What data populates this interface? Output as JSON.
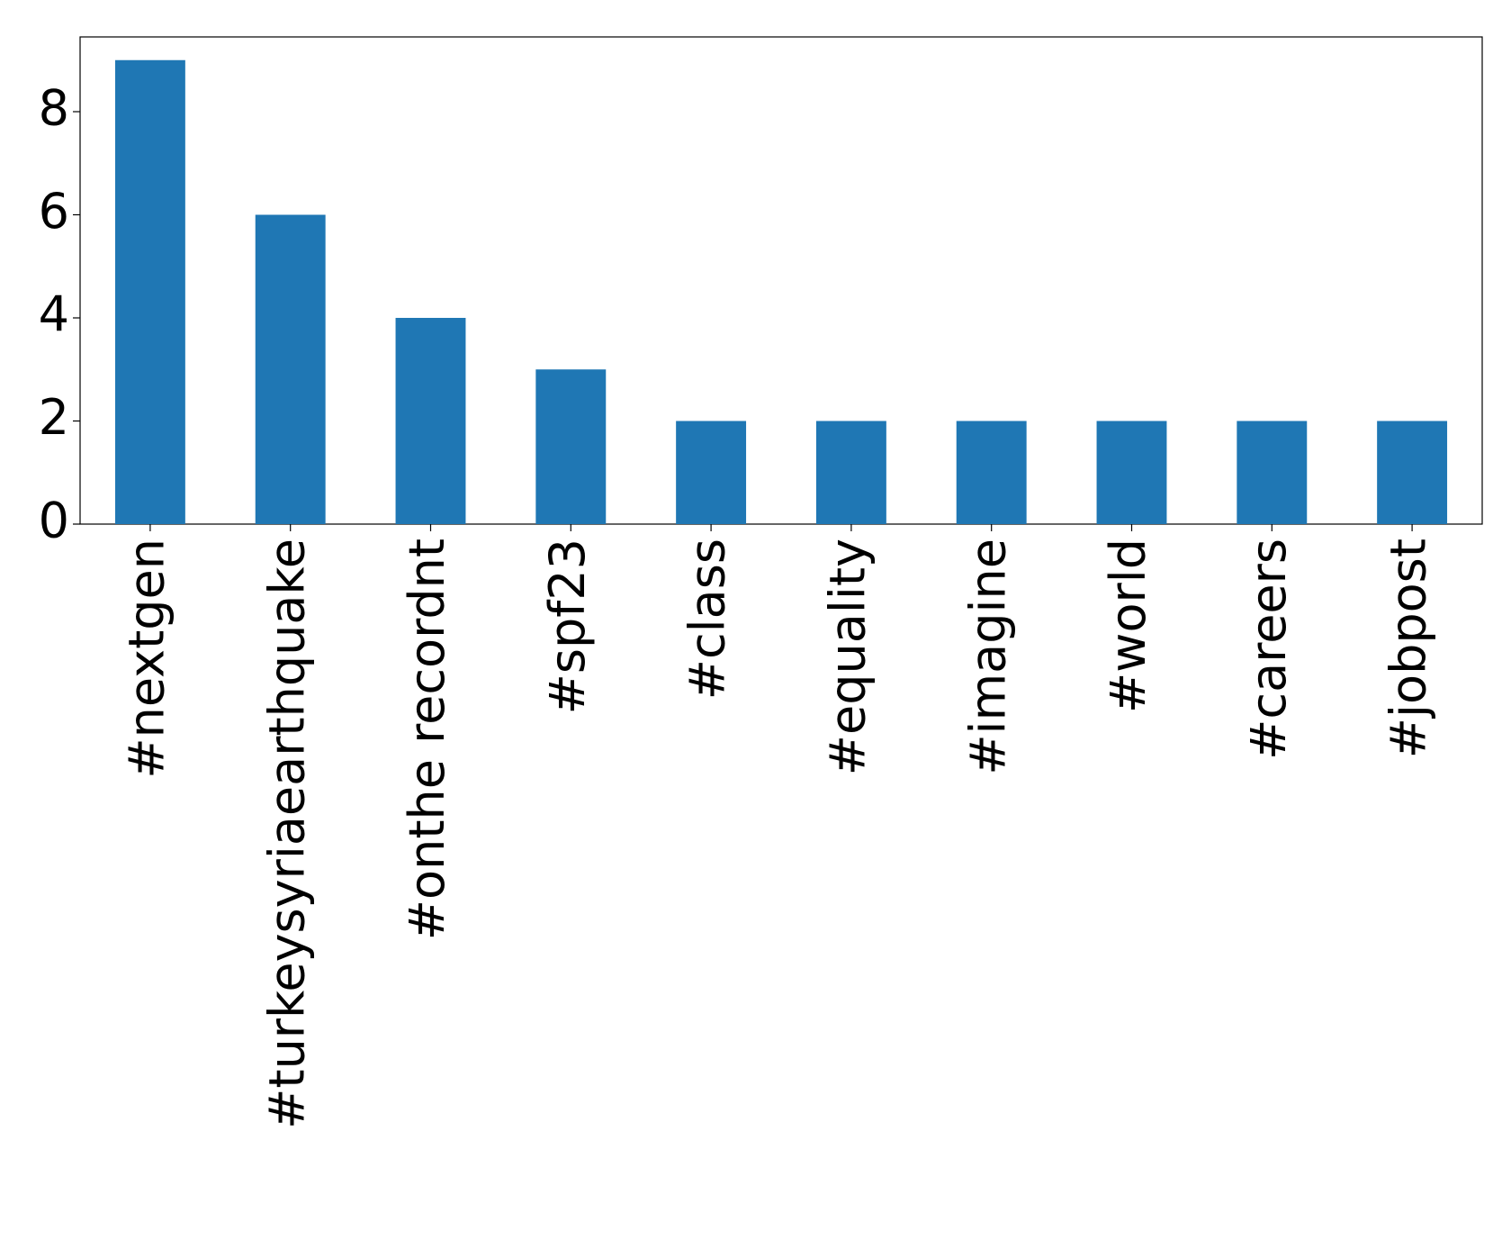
{
  "chart_data": {
    "type": "bar",
    "categories": [
      "#nextgen",
      "#turkeysyriaearthquake",
      "#onthe recordnt",
      "#spf23",
      "#class",
      "#equality",
      "#imagine",
      "#world",
      "#careers",
      "#jobpost"
    ],
    "values": [
      9,
      6,
      4,
      3,
      2,
      2,
      2,
      2,
      2,
      2
    ],
    "color": "#1f77b4",
    "ylim": [
      0,
      9.45
    ],
    "yticks": [
      0,
      2,
      4,
      6,
      8
    ],
    "grid": false
  }
}
